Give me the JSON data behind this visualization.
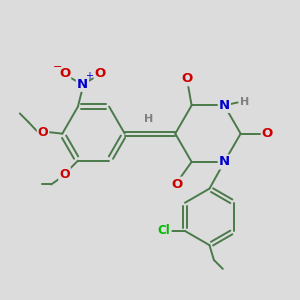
{
  "bg_color": "#dcdcdc",
  "bond_color": "#4a7a4a",
  "atom_colors": {
    "O": "#cc0000",
    "N": "#0000cc",
    "Cl": "#00bb00",
    "C": "#4a7a4a",
    "H": "#808080"
  },
  "font_size": 9.5
}
